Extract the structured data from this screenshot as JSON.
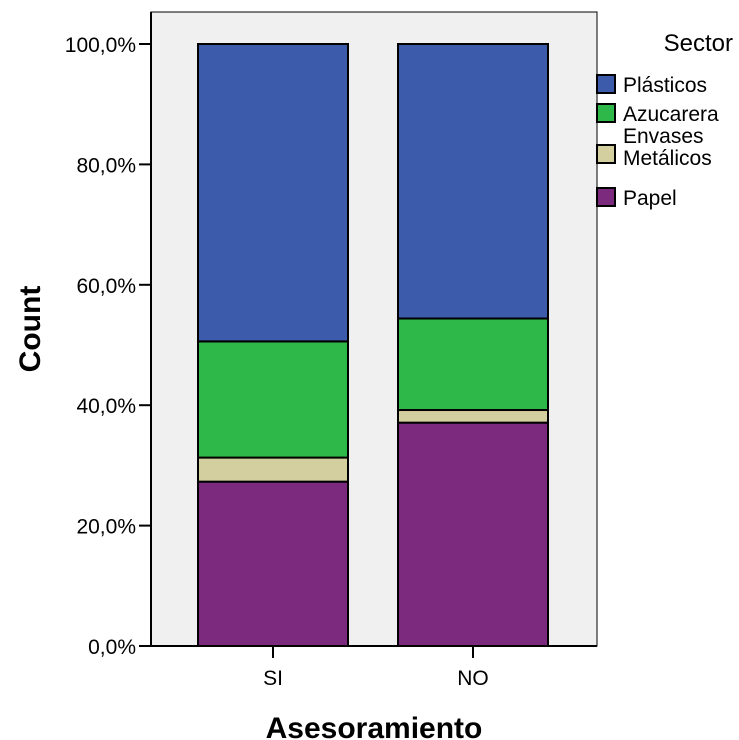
{
  "chart_data": {
    "type": "bar",
    "stacked": true,
    "categories": [
      "SI",
      "NO"
    ],
    "series": [
      {
        "name": "Papel",
        "values": [
          27.3,
          37.1
        ],
        "color": "#7b2a7e"
      },
      {
        "name": "Envases Metálicos",
        "values": [
          4.0,
          2.1
        ],
        "color": "#d4cf9e"
      },
      {
        "name": "Azucarera",
        "values": [
          19.3,
          15.2
        ],
        "color": "#2fb84a"
      },
      {
        "name": "Plásticos",
        "values": [
          49.4,
          45.6
        ],
        "color": "#3d5bab"
      }
    ],
    "legend_order": [
      "Plásticos",
      "Azucarera",
      "Envases Metálicos",
      "Papel"
    ],
    "legend_lines": {
      "Plásticos": [
        "Plásticos"
      ],
      "Azucarera": [
        "Azucarera"
      ],
      "Envases Metálicos": [
        "Envases",
        "Metálicos"
      ],
      "Papel": [
        "Papel"
      ]
    },
    "title": "",
    "xlabel": "Asesoramiento",
    "ylabel": "Count",
    "legend_title": "Sector",
    "legend_position": "right",
    "ylim": [
      0,
      100
    ],
    "yticks": [
      0,
      20,
      40,
      60,
      80,
      100
    ],
    "ytick_labels": [
      "0,0%",
      "20,0%",
      "40,0%",
      "60,0%",
      "80,0%",
      "100,0%"
    ],
    "plot_background": "#f0f0f0",
    "grid": false
  }
}
